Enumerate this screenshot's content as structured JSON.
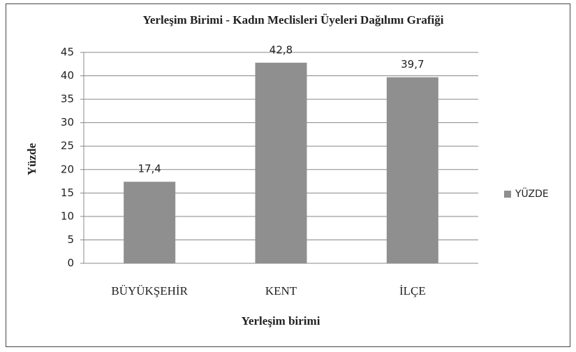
{
  "chart_data": {
    "type": "bar",
    "title": "Yerleşim Birimi - Kadın Meclisleri Üyeleri Dağılımı Grafiği",
    "x_label": "Yerleşim birimi",
    "y_label": "Yüzde",
    "categories": [
      "BÜYÜKŞEHİR",
      "KENT",
      "İLÇE"
    ],
    "series": [
      {
        "name": "YÜZDE",
        "color": "#8f8f8f",
        "values": [
          17.4,
          42.8,
          39.7
        ],
        "value_labels": [
          "17,4",
          "42,8",
          "39,7"
        ]
      }
    ],
    "ylim": [
      0,
      45
    ],
    "yticks": [
      0,
      5,
      10,
      15,
      20,
      25,
      30,
      35,
      40,
      45
    ],
    "grid": true,
    "legend": "right"
  }
}
